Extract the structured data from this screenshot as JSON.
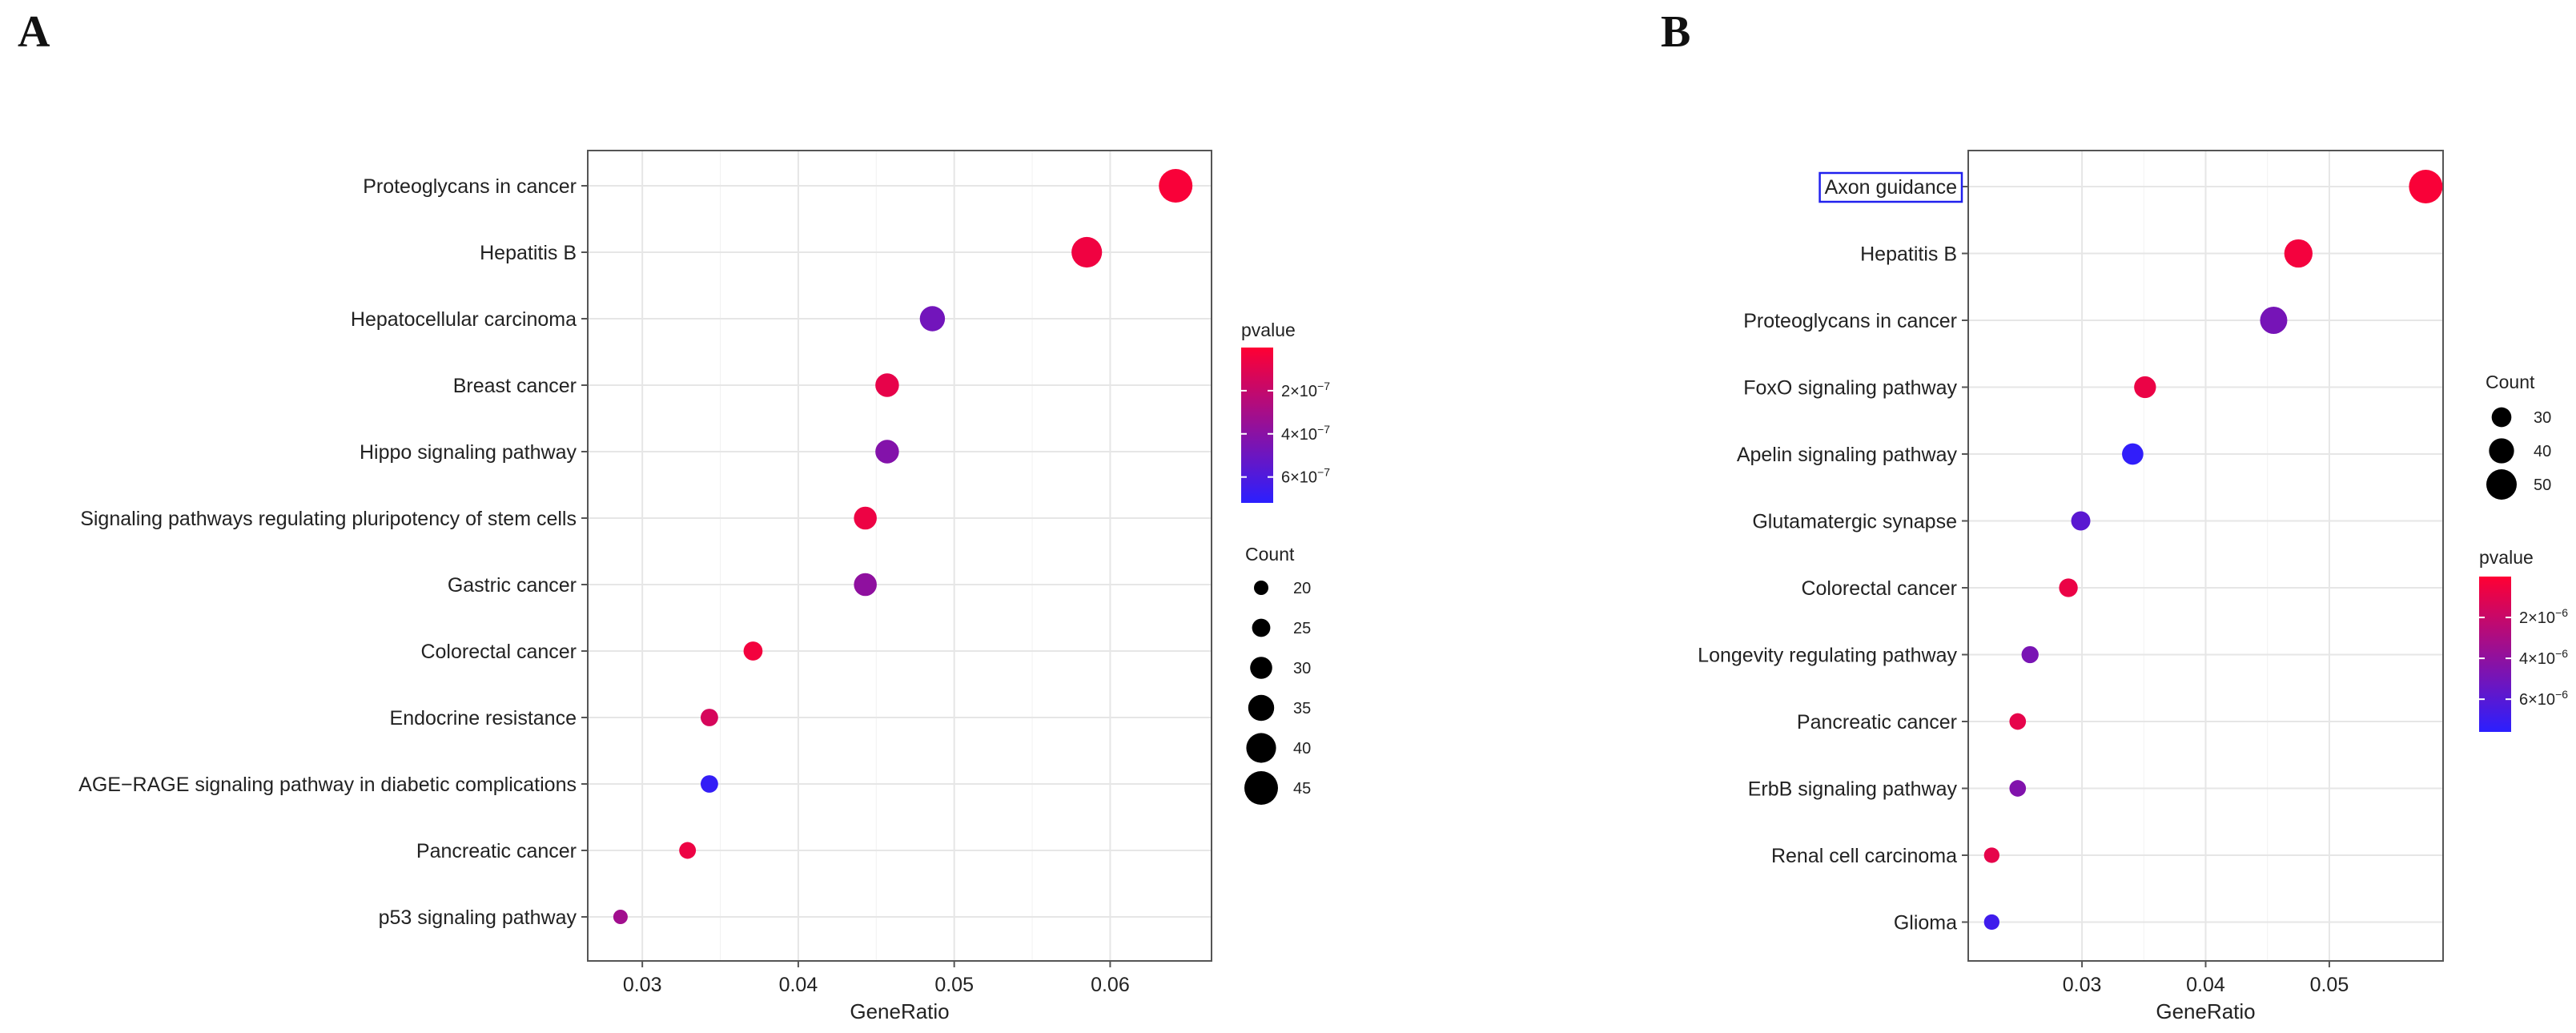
{
  "panels": {
    "a": {
      "letter": "A"
    },
    "b": {
      "letter": "B"
    }
  },
  "chart_data": [
    {
      "id": "a",
      "type": "scatter",
      "title": "",
      "xlabel": "GeneRatio",
      "ylabel": "",
      "xlim": [
        0.0265,
        0.0665
      ],
      "xticks": [
        0.03,
        0.04,
        0.05,
        0.06
      ],
      "xtick_labels": [
        "0.03",
        "0.04",
        "0.05",
        "0.06"
      ],
      "grid": true,
      "categories": [
        "Proteoglycans in cancer",
        "Hepatitis B",
        "Hepatocellular carcinoma",
        "Breast cancer",
        "Hippo signaling pathway",
        "Signaling pathways regulating pluripotency of stem cells",
        "Gastric cancer",
        "Colorectal cancer",
        "Endocrine resistance",
        "AGE−RAGE signaling pathway in diabetic complications",
        "Pancreatic cancer",
        "p53 signaling pathway"
      ],
      "gene_ratio": [
        0.0642,
        0.0585,
        0.0486,
        0.0457,
        0.0457,
        0.0443,
        0.0443,
        0.0371,
        0.0343,
        0.0343,
        0.0329,
        0.0286
      ],
      "count": [
        45,
        41,
        34,
        32,
        32,
        31,
        31,
        26,
        24,
        24,
        23,
        20
      ],
      "pvalue": [
        2e-08,
        5e-08,
        4.8e-07,
        8e-08,
        4.2e-07,
        6e-08,
        3.8e-07,
        4e-08,
        1.4e-07,
        6.9e-07,
        6e-08,
        3.2e-07
      ],
      "size_legend": {
        "title": "Count",
        "order": "size-then-color",
        "values": [
          20,
          25,
          30,
          35,
          40,
          45
        ],
        "labels": [
          "20",
          "25",
          "30",
          "35",
          "40",
          "45"
        ]
      },
      "color_legend": {
        "title": "pvalue",
        "min": 0,
        "max": 7.2e-07,
        "low_color": "#ff0033",
        "high_color": "#2b1fff",
        "ticks": [
          2e-07,
          4e-07,
          6e-07
        ],
        "tick_labels": [
          {
            "base": "2×10",
            "exp": "−7"
          },
          {
            "base": "4×10",
            "exp": "−7"
          },
          {
            "base": "6×10",
            "exp": "−7"
          }
        ]
      },
      "legend_position": "right",
      "highlight": null
    },
    {
      "id": "b",
      "type": "scatter",
      "title": "",
      "xlabel": "GeneRatio",
      "ylabel": "",
      "xlim": [
        0.0208,
        0.0592
      ],
      "xticks": [
        0.03,
        0.04,
        0.05
      ],
      "xtick_labels": [
        "0.03",
        "0.04",
        "0.05"
      ],
      "grid": true,
      "categories": [
        "Axon guidance",
        "Hepatitis B",
        "Proteoglycans in cancer",
        "FoxO signaling pathway",
        "Apelin signaling pathway",
        "Glutamatergic synapse",
        "Colorectal cancer",
        "Longevity regulating pathway",
        "Pancreatic cancer",
        "ErbB signaling pathway",
        "Renal cell carcinoma",
        "Glioma"
      ],
      "gene_ratio": [
        0.0578,
        0.0475,
        0.0455,
        0.0351,
        0.0341,
        0.0299,
        0.0289,
        0.0258,
        0.0248,
        0.0248,
        0.0227,
        0.0227
      ],
      "count": [
        56,
        46,
        44,
        34,
        33,
        29,
        28,
        25,
        24,
        24,
        22,
        22
      ],
      "pvalue": [
        2e-07,
        4e-07,
        4.9e-06,
        7e-07,
        7.4e-06,
        5.9e-06,
        7e-07,
        4.8e-06,
        9e-07,
        4.5e-06,
        9e-07,
        6.9e-06
      ],
      "size_legend": {
        "title": "Count",
        "values": [
          30,
          40,
          50
        ],
        "labels": [
          "30",
          "40",
          "50"
        ]
      },
      "color_legend": {
        "title": "pvalue",
        "min": 0,
        "max": 7.6e-06,
        "low_color": "#ff0033",
        "high_color": "#2b1fff",
        "ticks": [
          2e-06,
          4e-06,
          6e-06
        ],
        "tick_labels": [
          {
            "base": "2×10",
            "exp": "−6"
          },
          {
            "base": "4×10",
            "exp": "−6"
          },
          {
            "base": "6×10",
            "exp": "−6"
          }
        ]
      },
      "legend_position": "right",
      "highlight": {
        "category": "Axon guidance",
        "color": "#2020ee"
      }
    }
  ]
}
